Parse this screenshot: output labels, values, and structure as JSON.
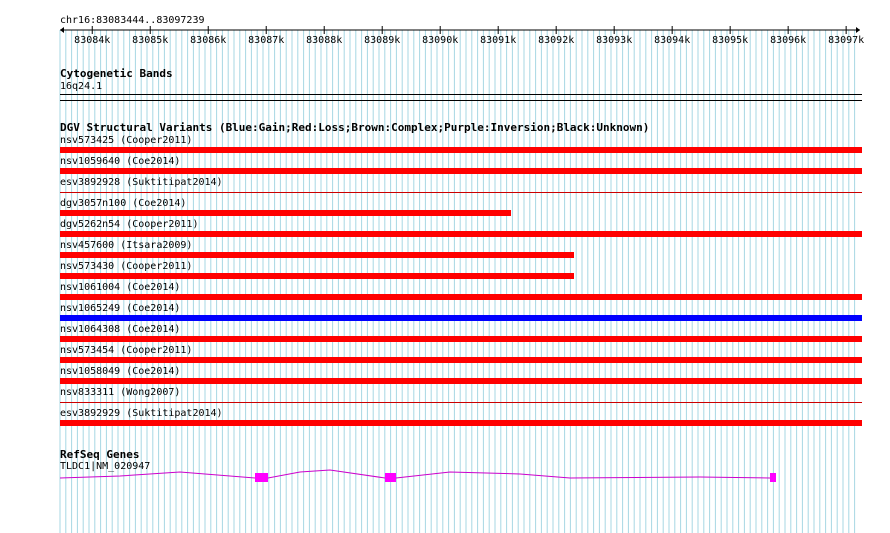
{
  "ruler": {
    "range_label": "chr16:83083444..83097239",
    "start": 83083444,
    "end": 83097239,
    "ticks": [
      "83084k",
      "83085k",
      "83086k",
      "83087k",
      "83088k",
      "83089k",
      "83090k",
      "83091k",
      "83092k",
      "83093k",
      "83094k",
      "83095k",
      "83096k",
      "83097k"
    ],
    "tick_values": [
      83084000,
      83085000,
      83086000,
      83087000,
      83088000,
      83089000,
      83090000,
      83091000,
      83092000,
      83093000,
      83094000,
      83095000,
      83096000,
      83097000
    ]
  },
  "cytoband": {
    "title": "Cytogenetic Bands",
    "band": "16q24.1"
  },
  "dgv": {
    "title": "DGV Structural Variants (Blue:Gain;Red:Loss;Brown:Complex;Purple:Inversion;Black:Unknown)",
    "colors": {
      "loss": "#ff0000",
      "gain": "#0000ff",
      "divider": "#cc0000"
    },
    "variants": [
      {
        "label": "nsv573425 (Cooper2011)",
        "type": "loss",
        "bar_end_fraction": 1.0
      },
      {
        "label": "nsv1059640 (Coe2014)",
        "type": "loss",
        "bar_end_fraction": 1.0
      },
      {
        "label": "esv3892928 (Suktitipat2014)",
        "type": "none",
        "bar_end_fraction": 0
      },
      {
        "label": "dgv3057n100 (Coe2014)",
        "type": "loss",
        "bar_end_fraction": 0.562
      },
      {
        "label": "dgv5262n54 (Cooper2011)",
        "type": "loss",
        "bar_end_fraction": 1.0
      },
      {
        "label": "nsv457600 (Itsara2009)",
        "type": "loss",
        "bar_end_fraction": 0.641
      },
      {
        "label": "nsv573430 (Cooper2011)",
        "type": "loss",
        "bar_end_fraction": 0.641
      },
      {
        "label": "nsv1061004 (Coe2014)",
        "type": "loss",
        "bar_end_fraction": 1.0
      },
      {
        "label": "nsv1065249 (Coe2014)",
        "type": "gain",
        "bar_end_fraction": 1.0
      },
      {
        "label": "nsv1064308 (Coe2014)",
        "type": "loss",
        "bar_end_fraction": 1.0
      },
      {
        "label": "nsv573454 (Cooper2011)",
        "type": "loss",
        "bar_end_fraction": 1.0
      },
      {
        "label": "nsv1058049 (Coe2014)",
        "type": "loss",
        "bar_end_fraction": 1.0
      },
      {
        "label": "nsv833311 (Wong2007)",
        "type": "none",
        "bar_end_fraction": 0
      },
      {
        "label": "esv3892929 (Suktitipat2014)",
        "type": "loss",
        "bar_end_fraction": 1.0
      }
    ]
  },
  "refseq": {
    "title": "RefSeq Genes",
    "gene_label": "TLDC1|NM_020947",
    "color": "#cc00cc",
    "exon_color": "#ff00ff"
  },
  "colors": {
    "grid": "#a7d7e3"
  }
}
